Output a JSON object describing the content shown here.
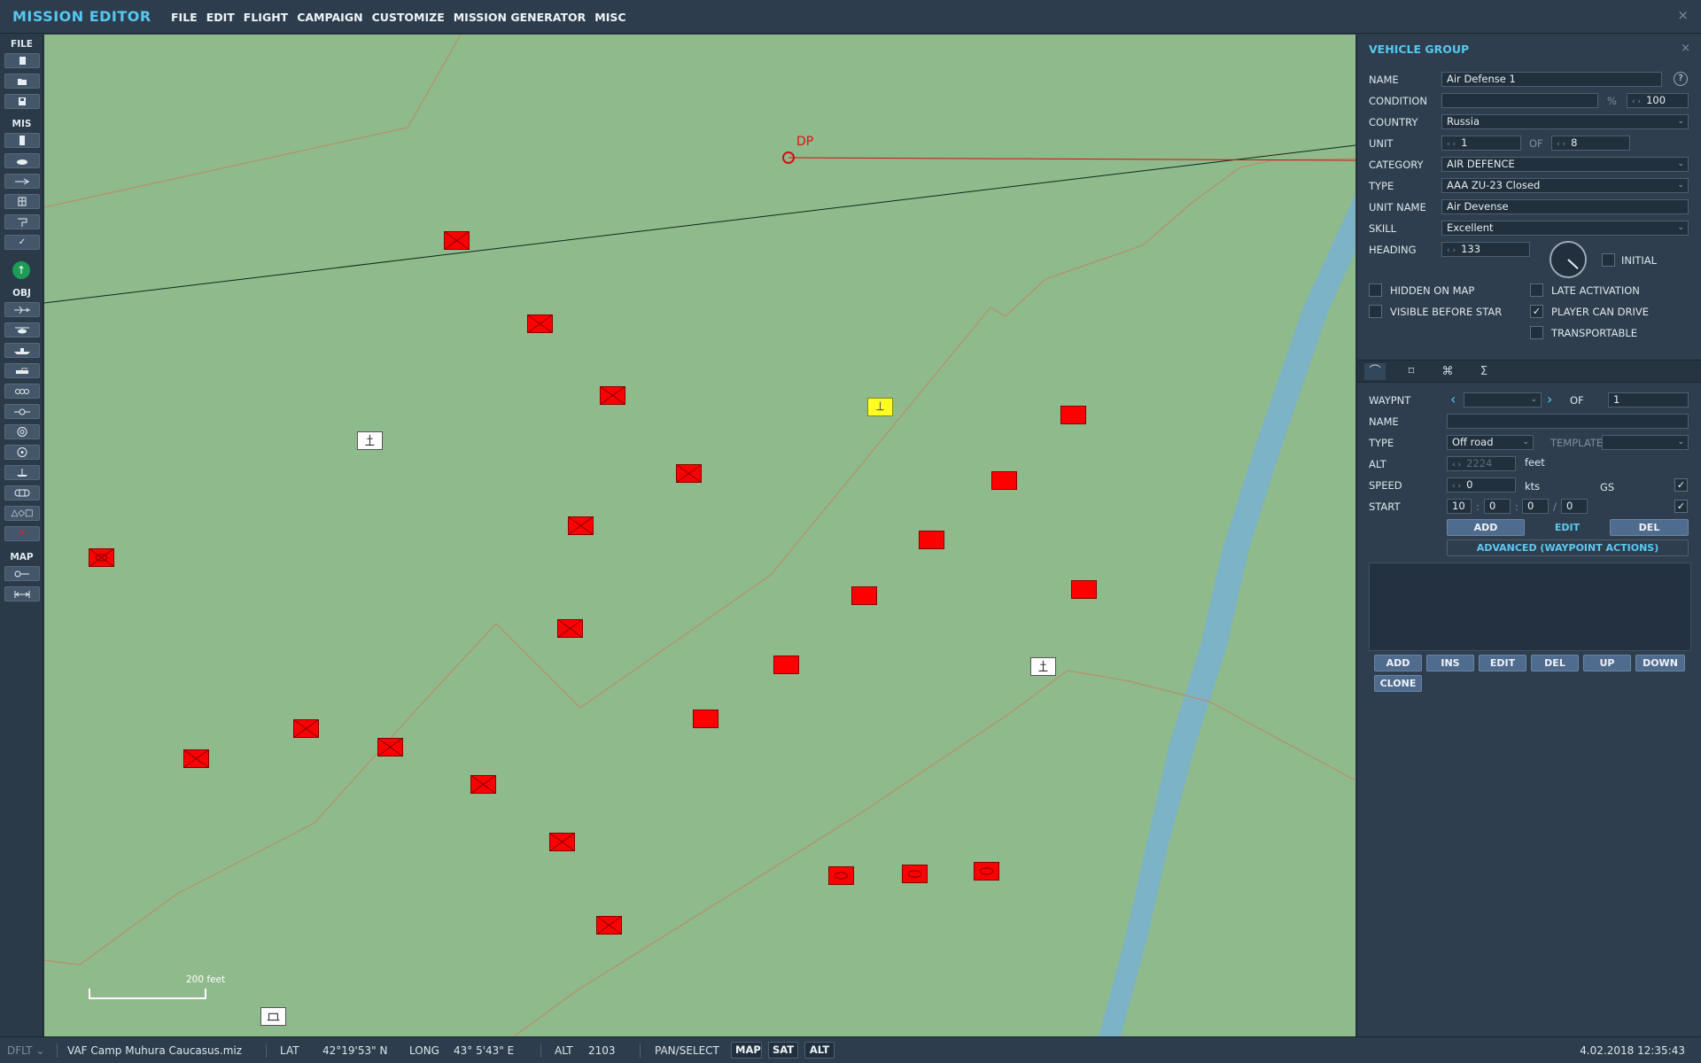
{
  "app": {
    "title": "MISSION EDITOR",
    "close_icon": "×"
  },
  "menu": [
    "FILE",
    "EDIT",
    "FLIGHT",
    "CAMPAIGN",
    "CUSTOMIZE",
    "MISSION GENERATOR",
    "MISC"
  ],
  "toolbar": {
    "sections": {
      "file": "FILE",
      "mis": "MIS",
      "obj": "OBJ",
      "map": "MAP"
    },
    "icons": {
      "file": [
        "new-file-icon",
        "open-file-icon",
        "save-file-icon"
      ],
      "mis": [
        "briefing-icon",
        "weather-icon",
        "time-icon",
        "trigger-icon",
        "goals-icon",
        "check-icon"
      ],
      "obj": [
        "plane-icon",
        "helicopter-icon",
        "ship-icon",
        "ground-unit-icon",
        "static-object-icon",
        "airbase-icon",
        "template-icon",
        "zone-icon",
        "nav-point-icon",
        "bullseye-icon",
        "shapes-icon",
        "delete-icon"
      ],
      "map": [
        "map-options-icon",
        "ruler-icon"
      ]
    },
    "check_symbol": "✓",
    "shapes_symbol": "△◇□",
    "delete_symbol": "✕",
    "compass_symbol": "↑",
    "exit_symbol": "⏻"
  },
  "map": {
    "dp_label": "DP",
    "scale_label": "200 feet",
    "colors": {
      "terrain": "#8fba8c",
      "river": "#7db3c6",
      "road": "#b6906a",
      "red_unit": "#ff0000",
      "selected_unit": "#ffff20"
    }
  },
  "panel": {
    "title": "VEHICLE GROUP",
    "help_symbol": "?",
    "fields": {
      "name_label": "NAME",
      "name_value": "Air Defense 1",
      "condition_label": "CONDITION",
      "condition_value": "",
      "condition_unit": "%",
      "condition_percent": "100",
      "country_label": "COUNTRY",
      "country_value": "Russia",
      "unit_label": "UNIT",
      "unit_value": "1",
      "unit_of_label": "OF",
      "unit_total": "8",
      "category_label": "CATEGORY",
      "category_value": "AIR DEFENCE",
      "type_label": "TYPE",
      "type_value": "AAA ZU-23 Closed",
      "unit_name_label": "UNIT NAME",
      "unit_name_value": "Air Devense",
      "skill_label": "SKILL",
      "skill_value": "Excellent",
      "heading_label": "HEADING",
      "heading_value": "133",
      "heading_degrees": 133,
      "initial_label": "INITIAL"
    },
    "checkboxes": {
      "hidden_on_map": {
        "label": "HIDDEN ON MAP",
        "checked": false
      },
      "visible_before_start": {
        "label": "VISIBLE BEFORE STAR",
        "checked": false
      },
      "late_activation": {
        "label": "LATE ACTIVATION",
        "checked": false
      },
      "player_can_drive": {
        "label": "PLAYER CAN DRIVE",
        "checked": true
      },
      "transportable": {
        "label": "TRANSPORTABLE",
        "checked": false
      },
      "check_symbol": "✓"
    },
    "tabs": [
      "route-icon",
      "triggered-actions-icon",
      "payload-icon",
      "summary-icon"
    ],
    "tab_glyphs": [
      "⌒",
      "⌑",
      "⌘",
      "Σ"
    ],
    "waypoint": {
      "waypnt_label": "WAYPNT",
      "waypnt_value": "",
      "of_label": "OF",
      "of_value": "1",
      "name_label": "NAME",
      "name_value": "",
      "type_label": "TYPE",
      "type_value": "Off road",
      "template_label": "TEMPLATE",
      "template_value": "",
      "alt_label": "ALT",
      "alt_value": "2224",
      "alt_unit": "feet",
      "speed_label": "SPEED",
      "speed_value": "0",
      "speed_unit": "kts",
      "gs_label": "GS",
      "start_label": "START",
      "start_day": "10",
      "start_h": "0",
      "start_m": "0",
      "start_s": "0",
      "time_sep": ":",
      "slash": "/"
    },
    "wp_buttons": {
      "add": "ADD",
      "edit": "EDIT",
      "del": "DEL",
      "advanced": "ADVANCED (WAYPOINT ACTIONS)"
    },
    "action_buttons": {
      "add": "ADD",
      "ins": "INS",
      "edit": "EDIT",
      "del": "DEL",
      "up": "UP",
      "down": "DOWN",
      "clone": "CLONE"
    },
    "close_icon": "×"
  },
  "status": {
    "mode": "DFLT",
    "file": "VAF Camp Muhura Caucasus.miz",
    "lat_label": "LAT",
    "lat_value": "42°19'53\" N",
    "long_label": "LONG",
    "long_value": "43° 5'43\" E",
    "alt_label": "ALT",
    "alt_value": "2103",
    "pan_label": "PAN/SELECT",
    "map_btn": "MAP",
    "sat_btn": "SAT",
    "alt_btn": "ALT",
    "datetime": "4.02.2018 12:35:43"
  }
}
